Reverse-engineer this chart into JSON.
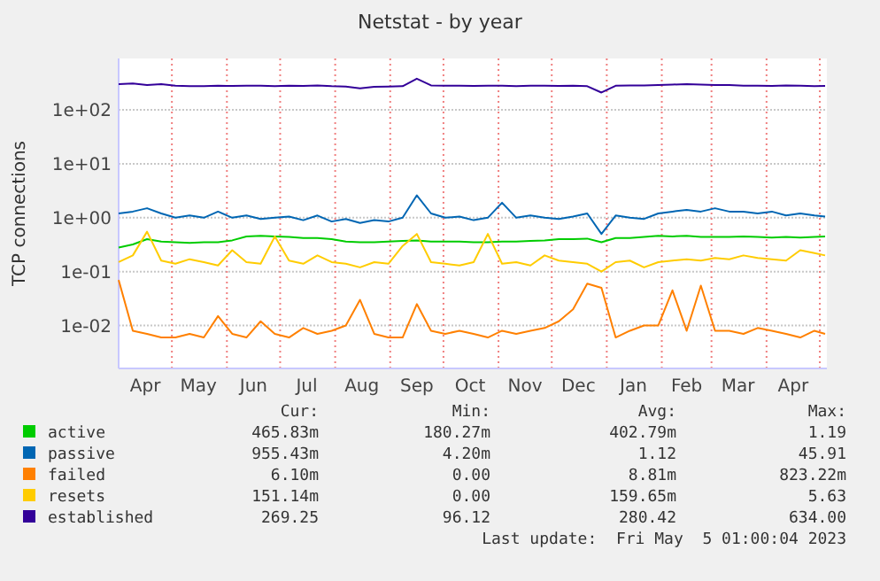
{
  "chart_data": {
    "type": "line",
    "title": "Netstat - by year",
    "ylabel": "TCP connections",
    "log": true,
    "grid": true,
    "legend": "bottom",
    "marker": "none",
    "line_style": "solid",
    "xlim": [
      "2022-04-01",
      "2023-05-05"
    ],
    "xticks": [
      {
        "value": "2022-04-16",
        "label": "Apr"
      },
      {
        "value": "2022-05-01",
        "label": null
      },
      {
        "value": "2022-05-16",
        "label": "May"
      },
      {
        "value": "2022-06-01",
        "label": null
      },
      {
        "value": "2022-06-16",
        "label": "Jun"
      },
      {
        "value": "2022-07-01",
        "label": null
      },
      {
        "value": "2022-07-16",
        "label": "Jul"
      },
      {
        "value": "2022-08-01",
        "label": null
      },
      {
        "value": "2022-08-16",
        "label": "Aug"
      },
      {
        "value": "2022-09-01",
        "label": null
      },
      {
        "value": "2022-09-16",
        "label": "Sep"
      },
      {
        "value": "2022-10-01",
        "label": null
      },
      {
        "value": "2022-10-16",
        "label": "Oct"
      },
      {
        "value": "2022-11-01",
        "label": null
      },
      {
        "value": "2022-11-16",
        "label": "Nov"
      },
      {
        "value": "2022-12-01",
        "label": null
      },
      {
        "value": "2022-12-16",
        "label": "Dec"
      },
      {
        "value": "2023-01-01",
        "label": null
      },
      {
        "value": "2023-01-16",
        "label": "Jan"
      },
      {
        "value": "2023-02-01",
        "label": null
      },
      {
        "value": "2023-02-15",
        "label": "Feb"
      },
      {
        "value": "2023-03-01",
        "label": null
      },
      {
        "value": "2023-03-16",
        "label": "Mar"
      },
      {
        "value": "2023-04-01",
        "label": null
      },
      {
        "value": "2023-04-16",
        "label": "Apr"
      },
      {
        "value": "2023-05-01",
        "label": null
      }
    ],
    "ylim": [
      0.0016,
      900
    ],
    "yticks": [
      {
        "value": 0.01,
        "label": "1e-02"
      },
      {
        "value": 0.1,
        "label": "1e-01"
      },
      {
        "value": 1,
        "label": "1e+00"
      },
      {
        "value": 10,
        "label": "1e+01"
      },
      {
        "value": 100,
        "label": "1e+02"
      }
    ],
    "x": [
      "2022-04-01",
      "2022-04-09",
      "2022-04-17",
      "2022-04-25",
      "2022-05-03",
      "2022-05-11",
      "2022-05-19",
      "2022-05-27",
      "2022-06-04",
      "2022-06-12",
      "2022-06-20",
      "2022-06-28",
      "2022-07-06",
      "2022-07-14",
      "2022-07-22",
      "2022-07-30",
      "2022-08-07",
      "2022-08-15",
      "2022-08-23",
      "2022-08-31",
      "2022-09-08",
      "2022-09-16",
      "2022-09-24",
      "2022-10-02",
      "2022-10-10",
      "2022-10-18",
      "2022-10-26",
      "2022-11-03",
      "2022-11-11",
      "2022-11-19",
      "2022-11-27",
      "2022-12-05",
      "2022-12-13",
      "2022-12-21",
      "2022-12-29",
      "2023-01-06",
      "2023-01-14",
      "2023-01-22",
      "2023-01-30",
      "2023-02-07",
      "2023-02-15",
      "2023-02-23",
      "2023-03-03",
      "2023-03-11",
      "2023-03-19",
      "2023-03-27",
      "2023-04-04",
      "2023-04-12",
      "2023-04-20",
      "2023-04-28",
      "2023-05-04"
    ],
    "series": [
      {
        "name": "active",
        "color": "#00cc00",
        "values": [
          0.28,
          0.32,
          0.4,
          0.36,
          0.35,
          0.34,
          0.35,
          0.35,
          0.38,
          0.45,
          0.46,
          0.45,
          0.44,
          0.42,
          0.42,
          0.4,
          0.36,
          0.35,
          0.35,
          0.36,
          0.37,
          0.38,
          0.36,
          0.36,
          0.36,
          0.35,
          0.35,
          0.36,
          0.36,
          0.37,
          0.38,
          0.4,
          0.4,
          0.41,
          0.35,
          0.42,
          0.42,
          0.44,
          0.46,
          0.45,
          0.46,
          0.44,
          0.44,
          0.44,
          0.45,
          0.44,
          0.43,
          0.44,
          0.43,
          0.44,
          0.45
        ]
      },
      {
        "name": "passive",
        "color": "#0066b3",
        "values": [
          1.2,
          1.3,
          1.5,
          1.2,
          1.0,
          1.1,
          1.0,
          1.3,
          1.0,
          1.1,
          0.95,
          1.0,
          1.05,
          0.9,
          1.1,
          0.85,
          0.95,
          0.8,
          0.9,
          0.85,
          1.0,
          2.6,
          1.2,
          1.0,
          1.05,
          0.9,
          1.0,
          1.9,
          1.0,
          1.1,
          1.0,
          0.95,
          1.05,
          1.2,
          0.5,
          1.1,
          1.0,
          0.95,
          1.2,
          1.3,
          1.4,
          1.3,
          1.5,
          1.3,
          1.3,
          1.2,
          1.3,
          1.1,
          1.2,
          1.1,
          1.05
        ]
      },
      {
        "name": "failed",
        "color": "#ff8000",
        "values": [
          0.07,
          0.008,
          0.007,
          0.006,
          0.006,
          0.007,
          0.006,
          0.015,
          0.007,
          0.006,
          0.012,
          0.007,
          0.006,
          0.009,
          0.007,
          0.008,
          0.01,
          0.03,
          0.007,
          0.006,
          0.006,
          0.025,
          0.008,
          0.007,
          0.008,
          0.007,
          0.006,
          0.008,
          0.007,
          0.008,
          0.009,
          0.012,
          0.02,
          0.06,
          0.05,
          0.006,
          0.008,
          0.01,
          0.01,
          0.045,
          0.008,
          0.055,
          0.008,
          0.008,
          0.007,
          0.009,
          0.008,
          0.007,
          0.006,
          0.008,
          0.007
        ]
      },
      {
        "name": "resets",
        "color": "#ffcc00",
        "values": [
          0.15,
          0.2,
          0.55,
          0.16,
          0.14,
          0.17,
          0.15,
          0.13,
          0.25,
          0.15,
          0.14,
          0.45,
          0.16,
          0.14,
          0.2,
          0.15,
          0.14,
          0.12,
          0.15,
          0.14,
          0.3,
          0.5,
          0.15,
          0.14,
          0.13,
          0.15,
          0.5,
          0.14,
          0.15,
          0.13,
          0.2,
          0.16,
          0.15,
          0.14,
          0.1,
          0.15,
          0.16,
          0.12,
          0.15,
          0.16,
          0.17,
          0.16,
          0.18,
          0.17,
          0.2,
          0.18,
          0.17,
          0.16,
          0.25,
          0.22,
          0.2
        ]
      },
      {
        "name": "established",
        "color": "#330099",
        "values": [
          300,
          310,
          290,
          300,
          280,
          275,
          275,
          280,
          278,
          280,
          282,
          275,
          280,
          278,
          285,
          275,
          270,
          250,
          268,
          272,
          275,
          380,
          285,
          280,
          282,
          278,
          280,
          280,
          275,
          282,
          280,
          278,
          280,
          275,
          210,
          280,
          285,
          283,
          290,
          295,
          300,
          296,
          290,
          288,
          282,
          280,
          278,
          285,
          280,
          275,
          278
        ]
      }
    ],
    "annotations": [
      "Cur:",
      "Min:",
      "Avg:",
      "Max:",
      "465.83m",
      "180.27m",
      "402.79m",
      "1.19",
      "955.43m",
      "4.20m",
      "1.12",
      "45.91",
      "6.10m",
      "0.00",
      "8.81m",
      "823.22m",
      "151.14m",
      "0.00",
      "159.65m",
      "5.63",
      "269.25",
      "96.12",
      "280.42",
      "634.00",
      "Last update:  Fri May  5 01:00:04 2023"
    ]
  }
}
